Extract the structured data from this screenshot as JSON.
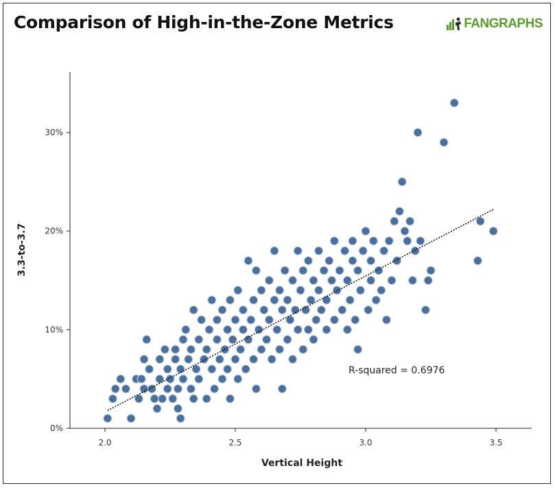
{
  "header": {
    "title": "Comparison of High-in-the-Zone Metrics",
    "logo_text": "FANGRAPHS"
  },
  "colors": {
    "point_fill": "#4a6f9c",
    "point_stroke": "#c9d3e0",
    "axis": "#222222",
    "brand": "#5a9c2d"
  },
  "chart_data": {
    "type": "scatter",
    "title": "Comparison of High-in-the-Zone Metrics",
    "xlabel": "Vertical Height",
    "ylabel": "3.3-to-3.7",
    "xlim": [
      1.87,
      3.65
    ],
    "ylim": [
      0,
      0.355
    ],
    "xticks": [
      2.0,
      2.5,
      3.0,
      3.5
    ],
    "xtick_labels": [
      "2.0",
      "2.5",
      "3.0",
      "3.5"
    ],
    "yticks": [
      0,
      0.1,
      0.2,
      0.3
    ],
    "ytick_labels": [
      "0%",
      "10%",
      "20%",
      "30%"
    ],
    "grid": false,
    "legend": "none",
    "annotation": "R-squared = 0.6976",
    "trendline": {
      "x": [
        2.01,
        3.49
      ],
      "y": [
        0.018,
        0.222
      ]
    },
    "series": [
      {
        "points": [
          [
            2.01,
            0.01
          ],
          [
            2.03,
            0.03
          ],
          [
            2.04,
            0.04
          ],
          [
            2.06,
            0.05
          ],
          [
            2.08,
            0.04
          ],
          [
            2.1,
            0.01
          ],
          [
            2.12,
            0.05
          ],
          [
            2.13,
            0.03
          ],
          [
            2.14,
            0.05
          ],
          [
            2.15,
            0.04
          ],
          [
            2.15,
            0.07
          ],
          [
            2.16,
            0.09
          ],
          [
            2.17,
            0.06
          ],
          [
            2.18,
            0.04
          ],
          [
            2.19,
            0.03
          ],
          [
            2.2,
            0.02
          ],
          [
            2.21,
            0.05
          ],
          [
            2.21,
            0.07
          ],
          [
            2.22,
            0.03
          ],
          [
            2.23,
            0.08
          ],
          [
            2.24,
            0.04
          ],
          [
            2.24,
            0.06
          ],
          [
            2.25,
            0.05
          ],
          [
            2.26,
            0.03
          ],
          [
            2.27,
            0.07
          ],
          [
            2.27,
            0.08
          ],
          [
            2.28,
            0.04
          ],
          [
            2.28,
            0.02
          ],
          [
            2.29,
            0.01
          ],
          [
            2.29,
            0.06
          ],
          [
            2.3,
            0.05
          ],
          [
            2.3,
            0.09
          ],
          [
            2.31,
            0.1
          ],
          [
            2.32,
            0.07
          ],
          [
            2.33,
            0.04
          ],
          [
            2.33,
            0.08
          ],
          [
            2.34,
            0.03
          ],
          [
            2.34,
            0.12
          ],
          [
            2.35,
            0.06
          ],
          [
            2.36,
            0.09
          ],
          [
            2.36,
            0.05
          ],
          [
            2.37,
            0.11
          ],
          [
            2.38,
            0.07
          ],
          [
            2.39,
            0.03
          ],
          [
            2.39,
            0.08
          ],
          [
            2.4,
            0.1
          ],
          [
            2.41,
            0.06
          ],
          [
            2.41,
            0.13
          ],
          [
            2.42,
            0.04
          ],
          [
            2.43,
            0.09
          ],
          [
            2.43,
            0.11
          ],
          [
            2.44,
            0.07
          ],
          [
            2.45,
            0.05
          ],
          [
            2.45,
            0.12
          ],
          [
            2.46,
            0.08
          ],
          [
            2.47,
            0.1
          ],
          [
            2.47,
            0.06
          ],
          [
            2.48,
            0.03
          ],
          [
            2.48,
            0.13
          ],
          [
            2.49,
            0.09
          ],
          [
            2.5,
            0.07
          ],
          [
            2.5,
            0.11
          ],
          [
            2.51,
            0.05
          ],
          [
            2.51,
            0.14
          ],
          [
            2.52,
            0.08
          ],
          [
            2.53,
            0.1
          ],
          [
            2.53,
            0.12
          ],
          [
            2.54,
            0.06
          ],
          [
            2.55,
            0.09
          ],
          [
            2.55,
            0.17
          ],
          [
            2.56,
            0.11
          ],
          [
            2.57,
            0.07
          ],
          [
            2.57,
            0.13
          ],
          [
            2.58,
            0.04
          ],
          [
            2.58,
            0.16
          ],
          [
            2.59,
            0.1
          ],
          [
            2.6,
            0.08
          ],
          [
            2.6,
            0.14
          ],
          [
            2.61,
            0.12
          ],
          [
            2.62,
            0.09
          ],
          [
            2.63,
            0.11
          ],
          [
            2.63,
            0.15
          ],
          [
            2.64,
            0.07
          ],
          [
            2.65,
            0.13
          ],
          [
            2.65,
            0.18
          ],
          [
            2.66,
            0.1
          ],
          [
            2.67,
            0.08
          ],
          [
            2.67,
            0.14
          ],
          [
            2.68,
            0.12
          ],
          [
            2.68,
            0.04
          ],
          [
            2.69,
            0.16
          ],
          [
            2.7,
            0.09
          ],
          [
            2.7,
            0.13
          ],
          [
            2.71,
            0.11
          ],
          [
            2.72,
            0.15
          ],
          [
            2.72,
            0.07
          ],
          [
            2.73,
            0.12
          ],
          [
            2.74,
            0.18
          ],
          [
            2.74,
            0.1
          ],
          [
            2.75,
            0.14
          ],
          [
            2.76,
            0.08
          ],
          [
            2.76,
            0.16
          ],
          [
            2.77,
            0.12
          ],
          [
            2.78,
            0.1
          ],
          [
            2.78,
            0.17
          ],
          [
            2.79,
            0.13
          ],
          [
            2.8,
            0.09
          ],
          [
            2.8,
            0.15
          ],
          [
            2.81,
            0.11
          ],
          [
            2.82,
            0.14
          ],
          [
            2.82,
            0.18
          ],
          [
            2.83,
            0.12
          ],
          [
            2.84,
            0.16
          ],
          [
            2.85,
            0.1
          ],
          [
            2.85,
            0.13
          ],
          [
            2.86,
            0.17
          ],
          [
            2.87,
            0.15
          ],
          [
            2.88,
            0.19
          ],
          [
            2.88,
            0.11
          ],
          [
            2.89,
            0.14
          ],
          [
            2.9,
            0.16
          ],
          [
            2.91,
            0.12
          ],
          [
            2.92,
            0.18
          ],
          [
            2.93,
            0.15
          ],
          [
            2.93,
            0.1
          ],
          [
            2.94,
            0.13
          ],
          [
            2.95,
            0.17
          ],
          [
            2.95,
            0.19
          ],
          [
            2.96,
            0.11
          ],
          [
            2.97,
            0.08
          ],
          [
            2.97,
            0.16
          ],
          [
            2.98,
            0.14
          ],
          [
            2.99,
            0.18
          ],
          [
            3.0,
            0.2
          ],
          [
            3.01,
            0.12
          ],
          [
            3.02,
            0.15
          ],
          [
            3.02,
            0.17
          ],
          [
            3.03,
            0.19
          ],
          [
            3.04,
            0.13
          ],
          [
            3.05,
            0.16
          ],
          [
            3.06,
            0.14
          ],
          [
            3.07,
            0.18
          ],
          [
            3.08,
            0.11
          ],
          [
            3.09,
            0.19
          ],
          [
            3.1,
            0.15
          ],
          [
            3.11,
            0.21
          ],
          [
            3.12,
            0.17
          ],
          [
            3.13,
            0.22
          ],
          [
            3.14,
            0.25
          ],
          [
            3.15,
            0.2
          ],
          [
            3.16,
            0.19
          ],
          [
            3.17,
            0.21
          ],
          [
            3.18,
            0.15
          ],
          [
            3.19,
            0.18
          ],
          [
            3.2,
            0.3
          ],
          [
            3.21,
            0.19
          ],
          [
            3.23,
            0.12
          ],
          [
            3.24,
            0.15
          ],
          [
            3.25,
            0.16
          ],
          [
            3.3,
            0.29
          ],
          [
            3.34,
            0.33
          ],
          [
            3.43,
            0.17
          ],
          [
            3.44,
            0.21
          ],
          [
            3.49,
            0.2
          ]
        ]
      }
    ]
  }
}
